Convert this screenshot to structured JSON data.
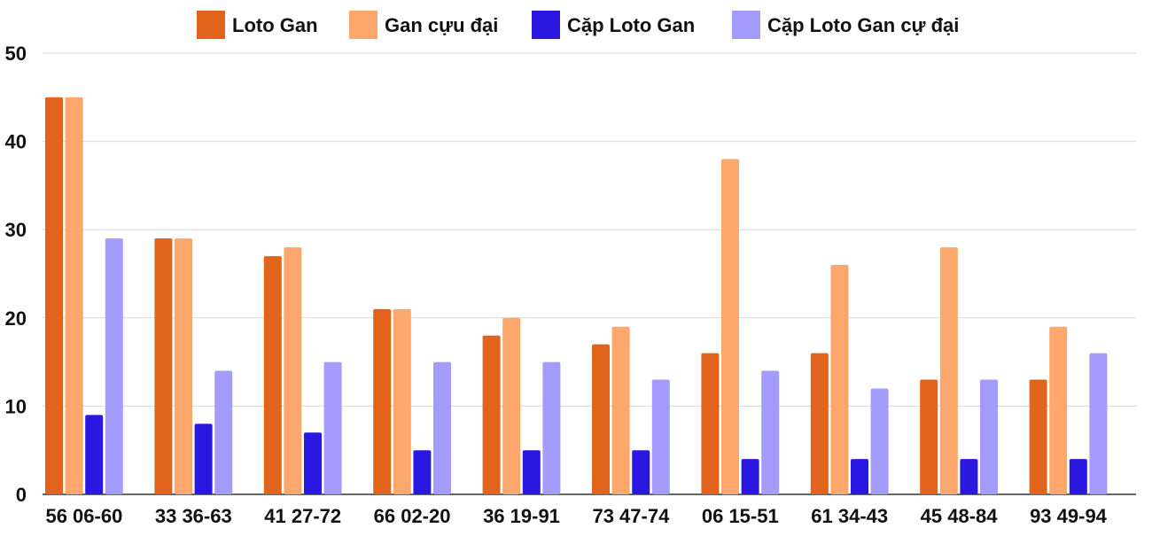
{
  "chart_data": {
    "type": "bar",
    "title": "",
    "xlabel": "",
    "ylabel": "",
    "ylim": [
      0,
      50
    ],
    "yticks": [
      0,
      10,
      20,
      30,
      40,
      50
    ],
    "grid": true,
    "legend_position": "top",
    "categories": [
      "56 06-60",
      "33 36-63",
      "41 27-72",
      "66 02-20",
      "36 19-91",
      "73 47-74",
      "06 15-51",
      "61 34-43",
      "45 48-84",
      "93 49-94"
    ],
    "series": [
      {
        "name": "Loto Gan",
        "color": "#e2631b",
        "values": [
          45,
          29,
          27,
          21,
          18,
          17,
          16,
          16,
          13,
          13
        ]
      },
      {
        "name": "Gan cựu đại",
        "color": "#fea76c",
        "values": [
          45,
          29,
          28,
          21,
          20,
          19,
          38,
          26,
          28,
          19
        ]
      },
      {
        "name": "Cặp Loto Gan",
        "color": "#2a17e0",
        "values": [
          9,
          8,
          7,
          5,
          5,
          5,
          4,
          4,
          4,
          4
        ]
      },
      {
        "name": "Cặp Loto Gan cự đại",
        "color": "#a39cfd",
        "values": [
          29,
          14,
          15,
          15,
          15,
          13,
          14,
          12,
          13,
          16
        ]
      }
    ]
  }
}
